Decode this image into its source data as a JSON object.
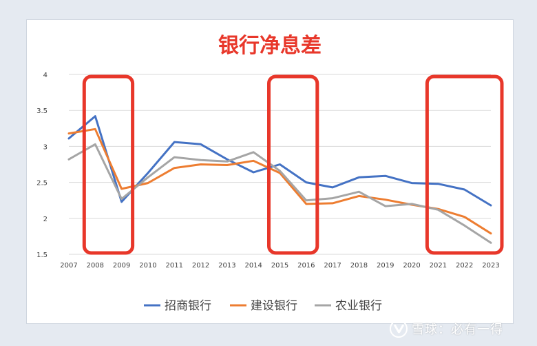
{
  "colors": {
    "title": "#e8372a",
    "highlight": "#e8372a",
    "grid": "#d9d9d9",
    "axis_text": "#404040"
  },
  "chart_data": {
    "type": "line",
    "title": "银行净息差",
    "xlabel": "",
    "ylabel": "",
    "categories": [
      "2007",
      "2008",
      "2009",
      "2010",
      "2011",
      "2012",
      "2013",
      "2014",
      "2015",
      "2016",
      "2017",
      "2018",
      "2019",
      "2020",
      "2021",
      "2022",
      "2023"
    ],
    "ylim": [
      1.5,
      4
    ],
    "yticks": [
      "1.5",
      "2",
      "2.5",
      "3",
      "3.5",
      "4"
    ],
    "grid": true,
    "legend_position": "bottom",
    "series": [
      {
        "name": "招商银行",
        "color": "#4472c4",
        "values": [
          3.11,
          3.42,
          2.23,
          2.63,
          3.06,
          3.03,
          2.82,
          2.64,
          2.75,
          2.5,
          2.43,
          2.57,
          2.59,
          2.49,
          2.48,
          2.4,
          2.18
        ]
      },
      {
        "name": "建设银行",
        "color": "#ed7d31",
        "values": [
          3.18,
          3.24,
          2.41,
          2.49,
          2.7,
          2.75,
          2.74,
          2.8,
          2.63,
          2.2,
          2.21,
          2.31,
          2.26,
          2.19,
          2.13,
          2.02,
          1.79
        ]
      },
      {
        "name": "农业银行",
        "color": "#a5a5a5",
        "values": [
          2.82,
          3.03,
          2.27,
          2.57,
          2.85,
          2.81,
          2.79,
          2.92,
          2.66,
          2.25,
          2.28,
          2.37,
          2.17,
          2.2,
          2.12,
          1.9,
          1.66
        ]
      }
    ],
    "highlight_ranges": [
      [
        "2008",
        "2009"
      ],
      [
        "2015",
        "2016"
      ],
      [
        "2021",
        "2023"
      ]
    ]
  },
  "watermark": {
    "text": "雪球：必有一得",
    "logo": "snowball-logo-icon"
  }
}
